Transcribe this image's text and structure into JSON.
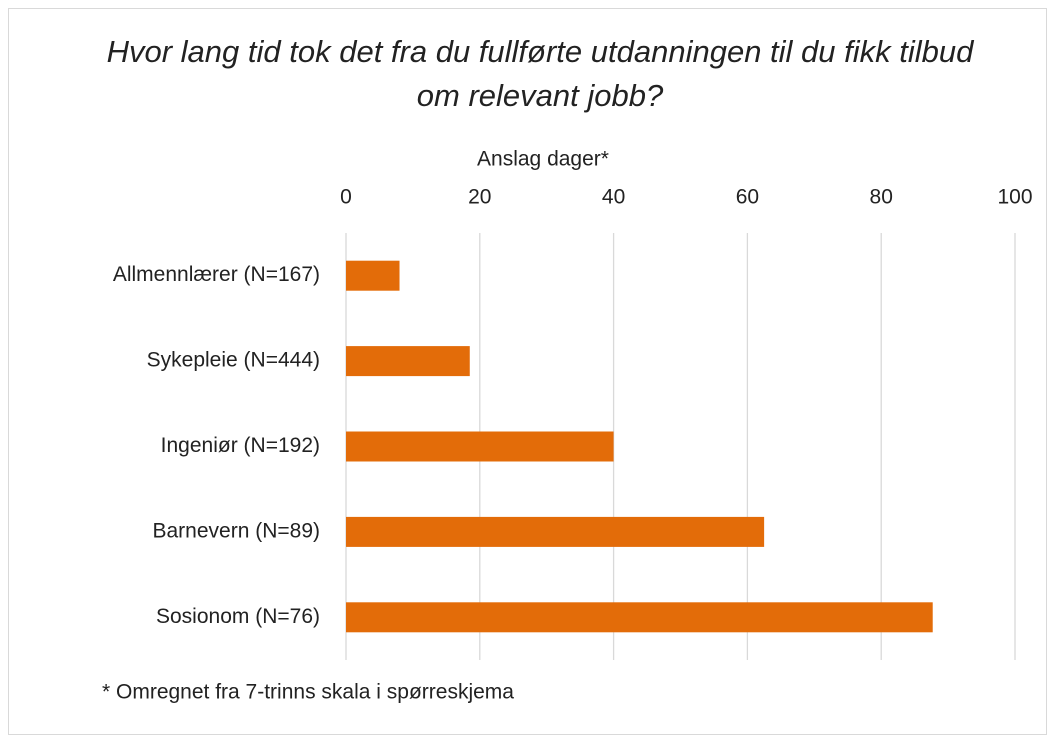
{
  "chart_data": {
    "type": "barh",
    "title": "Hvor lang tid tok det fra du fullførte utdanningen til du fikk tilbud om relevant jobb?",
    "xlabel": "Anslag dager*",
    "footnote": "* Omregnet fra 7-trinns skala i spørreskjema",
    "categories": [
      "Allmennlærer (N=167)",
      "Sykepleie (N=444)",
      "Ingeniør (N=192)",
      "Barnevern (N=89)",
      "Sosionom (N=76)"
    ],
    "values": [
      8,
      18.5,
      40,
      62.5,
      87.7
    ],
    "color": "#e36c09",
    "xlim": [
      0,
      100
    ],
    "xticks": [
      0,
      20,
      40,
      60,
      80,
      100
    ],
    "grid": true
  }
}
